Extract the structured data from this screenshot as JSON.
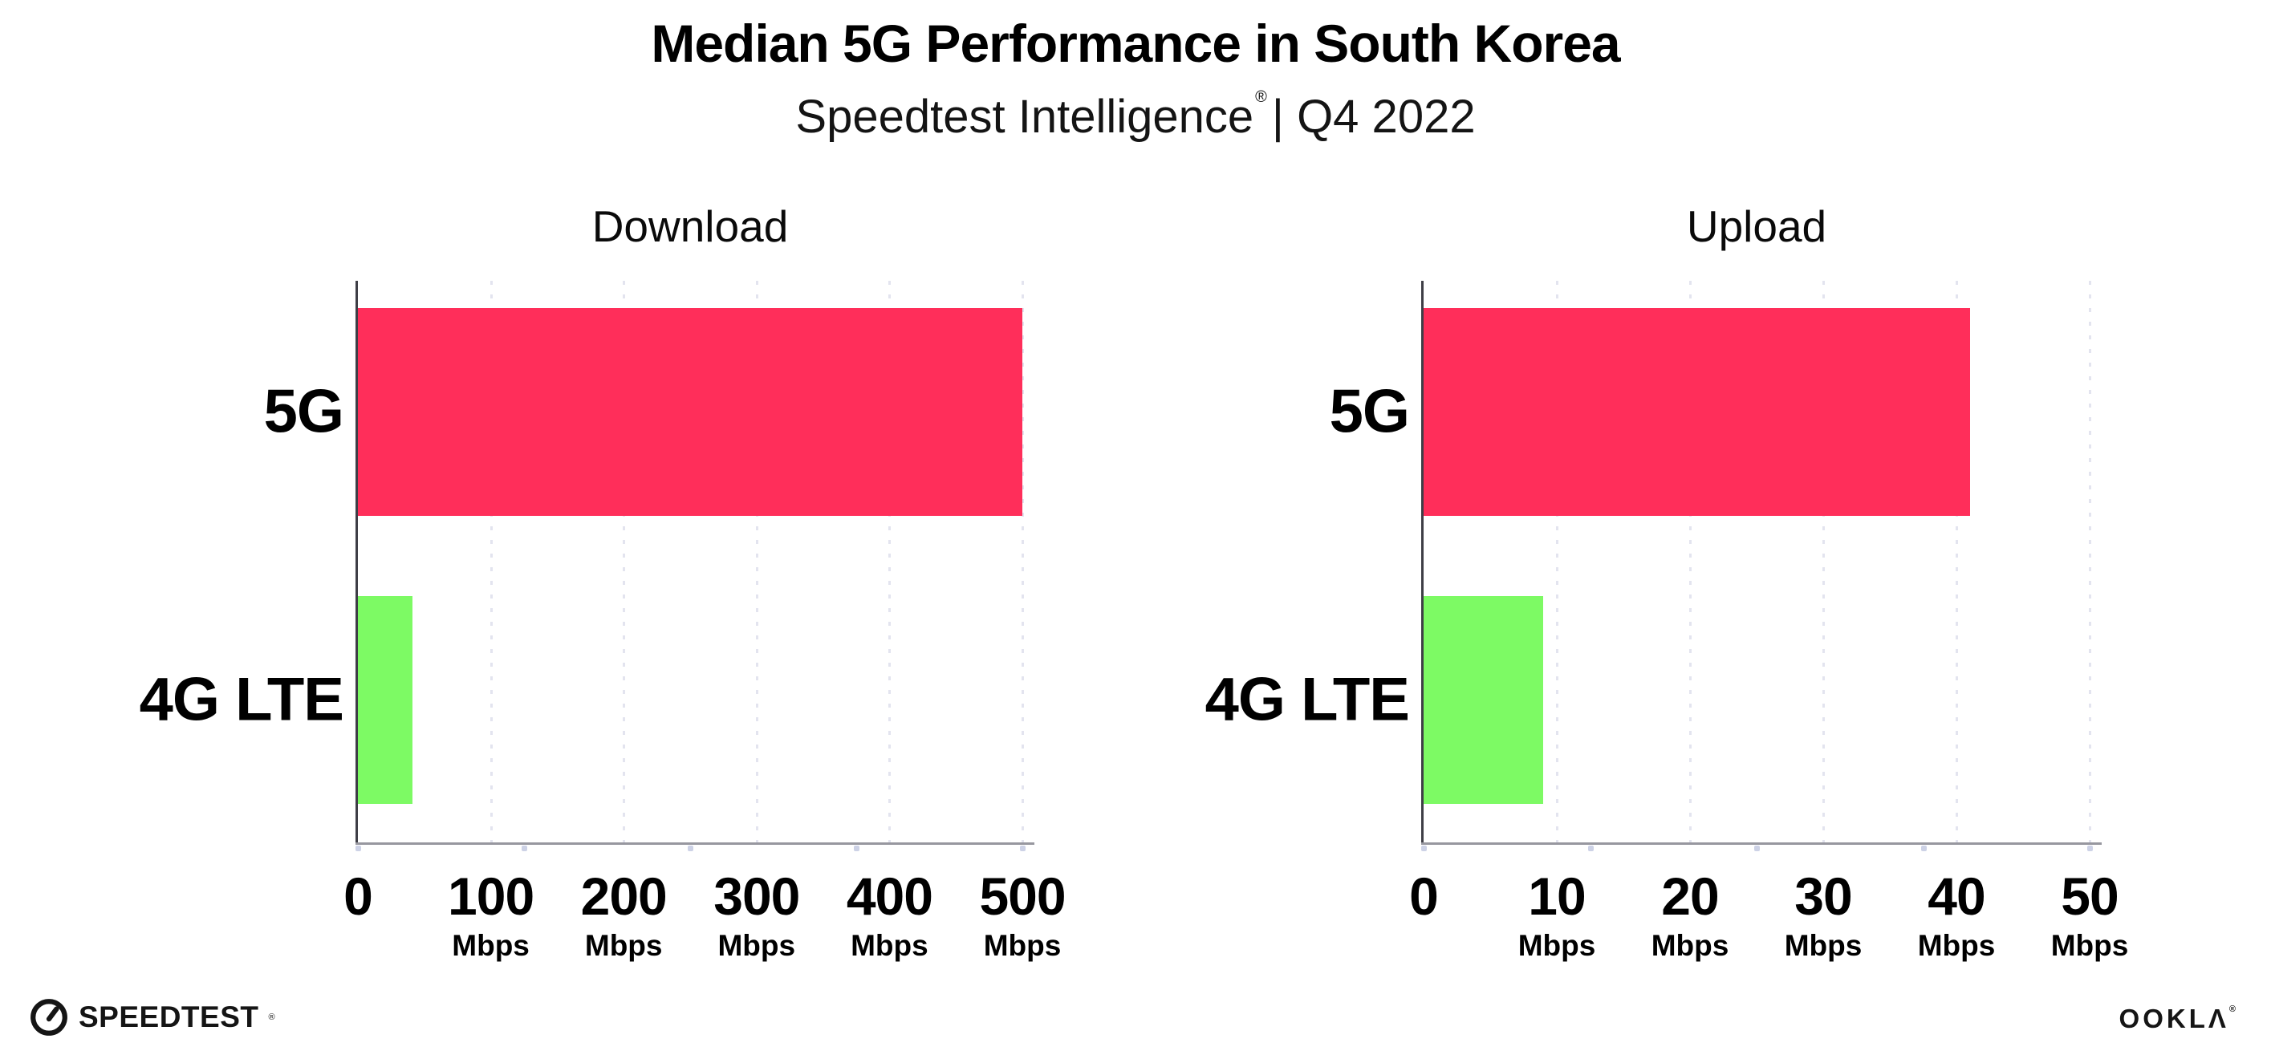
{
  "title": "Median 5G Performance in South Korea",
  "subtitle": {
    "text": "Speedtest Intelligence",
    "reg": "®",
    "period": "| Q4 2022"
  },
  "charts": [
    {
      "title": "Download",
      "unit": "Mbps",
      "xmax": 500,
      "ticks": [
        {
          "v": "0",
          "u": ""
        },
        {
          "v": "100",
          "u": "Mbps"
        },
        {
          "v": "200",
          "u": "Mbps"
        },
        {
          "v": "300",
          "u": "Mbps"
        },
        {
          "v": "400",
          "u": "Mbps"
        },
        {
          "v": "500",
          "u": "Mbps"
        }
      ],
      "bars": [
        {
          "label": "5G",
          "value": 500,
          "color": "#FF2E5A"
        },
        {
          "label": "4G LTE",
          "value": 41,
          "color": "#7DFA64"
        }
      ]
    },
    {
      "title": "Upload",
      "unit": "Mbps",
      "xmax": 50,
      "ticks": [
        {
          "v": "0",
          "u": ""
        },
        {
          "v": "10",
          "u": "Mbps"
        },
        {
          "v": "20",
          "u": "Mbps"
        },
        {
          "v": "30",
          "u": "Mbps"
        },
        {
          "v": "40",
          "u": "Mbps"
        },
        {
          "v": "50",
          "u": "Mbps"
        }
      ],
      "bars": [
        {
          "label": "5G",
          "value": 41,
          "color": "#FF2E5A"
        },
        {
          "label": "4G LTE",
          "value": 9,
          "color": "#7DFA64"
        }
      ]
    }
  ],
  "footer": {
    "speedtest": "SPEEDTEST",
    "speedtest_reg": "®",
    "ookla": "OOKLΛ",
    "ookla_reg": "®"
  },
  "colors": {
    "bar_5g": "#FF2E5A",
    "bar_4g_lte": "#7DFA64",
    "gridline": "#E3E4EF",
    "y_axis": "#3E3E46",
    "x_axis": "#97979F",
    "tick_dot": "#CDD2E6",
    "text": "#000000"
  },
  "chart_data": [
    {
      "type": "bar",
      "orientation": "horizontal",
      "title": "Download",
      "categories": [
        "5G",
        "4G LTE"
      ],
      "values": [
        500,
        41
      ],
      "unit": "Mbps",
      "xlim": [
        0,
        500
      ],
      "xticks": [
        0,
        100,
        200,
        300,
        400,
        500
      ],
      "bar_colors": [
        "#FF2E5A",
        "#7DFA64"
      ],
      "grid": "vertical-dotted",
      "legend": "none"
    },
    {
      "type": "bar",
      "orientation": "horizontal",
      "title": "Upload",
      "categories": [
        "5G",
        "4G LTE"
      ],
      "values": [
        41,
        9
      ],
      "unit": "Mbps",
      "xlim": [
        0,
        50
      ],
      "xticks": [
        0,
        10,
        20,
        30,
        40,
        50
      ],
      "bar_colors": [
        "#FF2E5A",
        "#7DFA64"
      ],
      "grid": "vertical-dotted",
      "legend": "none"
    }
  ]
}
